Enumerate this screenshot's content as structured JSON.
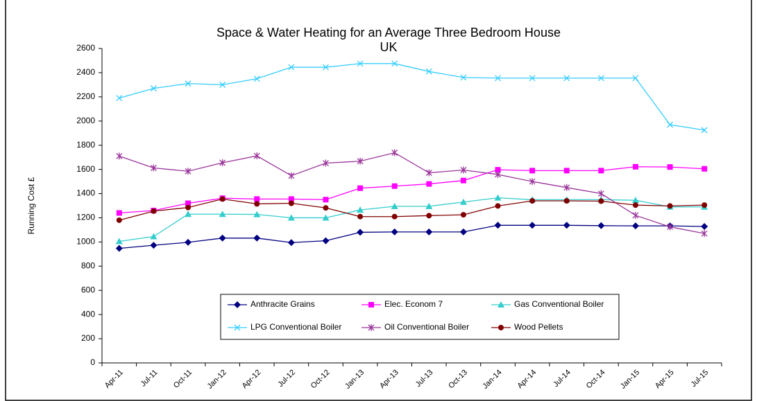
{
  "chart_data": {
    "type": "line",
    "title": "Space & Water Heating for an Average Three Bedroom House",
    "subtitle": "UK",
    "ylabel": "Running Cost £",
    "categories": [
      "Apr-11",
      "Jul-11",
      "Oct-11",
      "Jan-12",
      "Apr-12",
      "Jul-12",
      "Oct-12",
      "Jan-13",
      "Apr-13",
      "Jul-13",
      "Oct-13",
      "Jan-14",
      "Apr-14",
      "Jul-14",
      "Oct-14",
      "Jan-15",
      "Apr-15",
      "Jul-15"
    ],
    "series": [
      {
        "name": "Anthracite Grains",
        "color": "#000080",
        "marker": "diamond",
        "values": [
          947,
          973,
          997,
          1032,
          1032,
          995,
          1010,
          1080,
          1083,
          1083,
          1083,
          1138,
          1138,
          1138,
          1135,
          1133,
          1133,
          1128
        ]
      },
      {
        "name": "Elec. Econom 7",
        "color": "#ff00ff",
        "marker": "square",
        "values": [
          1240,
          1260,
          1320,
          1362,
          1355,
          1355,
          1350,
          1445,
          1462,
          1480,
          1508,
          1597,
          1590,
          1590,
          1590,
          1622,
          1620,
          1605
        ]
      },
      {
        "name": "Gas Conventional Boiler",
        "color": "#33cccc",
        "marker": "triangle",
        "values": [
          1005,
          1045,
          1230,
          1230,
          1228,
          1200,
          1200,
          1265,
          1295,
          1295,
          1330,
          1365,
          1350,
          1350,
          1350,
          1345,
          1290,
          1290
        ]
      },
      {
        "name": "LPG Conventional Boiler",
        "color": "#33ccff",
        "marker": "x",
        "values": [
          2190,
          2270,
          2310,
          2300,
          2350,
          2445,
          2445,
          2475,
          2475,
          2410,
          2360,
          2355,
          2355,
          2355,
          2355,
          2355,
          1970,
          1925
        ]
      },
      {
        "name": "Oil Conventional Boiler",
        "color": "#993399",
        "marker": "star",
        "values": [
          1710,
          1612,
          1585,
          1655,
          1712,
          1548,
          1652,
          1668,
          1738,
          1572,
          1595,
          1558,
          1500,
          1450,
          1400,
          1220,
          1125,
          1070
        ]
      },
      {
        "name": "Wood Pellets",
        "color": "#800000",
        "marker": "circle",
        "values": [
          1180,
          1255,
          1285,
          1355,
          1315,
          1320,
          1282,
          1210,
          1210,
          1218,
          1225,
          1298,
          1340,
          1340,
          1338,
          1305,
          1298,
          1305
        ]
      }
    ],
    "ylim": [
      0,
      2600
    ],
    "yticks": [
      0,
      200,
      400,
      600,
      800,
      1000,
      1200,
      1400,
      1600,
      1800,
      2000,
      2200,
      2400,
      2600
    ],
    "grid": false,
    "legend": "lower center"
  }
}
